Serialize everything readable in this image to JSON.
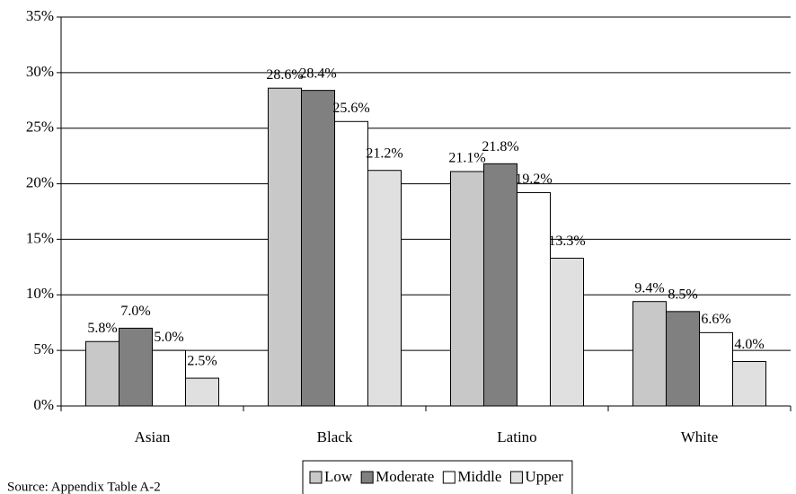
{
  "chart_data": {
    "type": "bar",
    "categories": [
      "Asian",
      "Black",
      "Latino",
      "White"
    ],
    "series": [
      {
        "name": "Low",
        "color": "#c8c8c8",
        "values": [
          5.8,
          28.6,
          21.1,
          9.4
        ],
        "value_labels": [
          "5.8%",
          "28.6%",
          "21.1%",
          "9.4%"
        ]
      },
      {
        "name": "Moderate",
        "color": "#808080",
        "values": [
          7.0,
          28.4,
          21.8,
          8.5
        ],
        "value_labels": [
          "7.0%",
          "28.4%",
          "21.8%",
          "8.5%"
        ]
      },
      {
        "name": "Middle",
        "color": "#ffffff",
        "values": [
          5.0,
          25.6,
          19.2,
          6.6
        ],
        "value_labels": [
          "5.0%",
          "25.6%",
          "19.2%",
          "6.6%"
        ]
      },
      {
        "name": "Upper",
        "color": "#e0e0e0",
        "values": [
          2.5,
          21.2,
          13.3,
          4.0
        ],
        "value_labels": [
          "2.5%",
          "21.2%",
          "13.3%",
          "4.0%"
        ]
      }
    ],
    "ylim": [
      0,
      35
    ],
    "yticks": [
      {
        "value": 0,
        "label": "0%"
      },
      {
        "value": 5,
        "label": "5%"
      },
      {
        "value": 10,
        "label": "10%"
      },
      {
        "value": 15,
        "label": "15%"
      },
      {
        "value": 20,
        "label": "20%"
      },
      {
        "value": 25,
        "label": "25%"
      },
      {
        "value": 30,
        "label": "30%"
      },
      {
        "value": 35,
        "label": "35%"
      }
    ],
    "grid": true,
    "legend": "bottom",
    "note": "Source: Appendix Table A-2"
  }
}
